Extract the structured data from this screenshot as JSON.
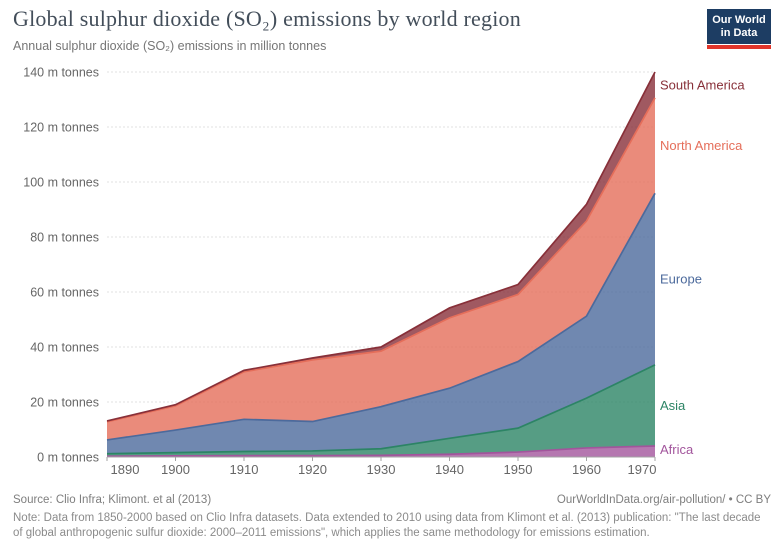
{
  "header": {
    "title": "Global sulphur dioxide (SO₂) emissions by world region",
    "subtitle": "Annual sulphur dioxide (SO₂) emissions in million tonnes",
    "logo": {
      "line1": "Our World",
      "line2": "in Data",
      "bg": "#1d3d63",
      "accent": "#e0352b"
    }
  },
  "footer": {
    "source": "Source: Clio Infra; Klimont. et al (2013)",
    "link": "OurWorldInData.org/air-pollution/",
    "license_suffix": " • CC BY",
    "note": "Note: Data from 1850-2000 based on Clio Infra datasets. Data extended to 2010 using data from Klimont et al. (2013) publication: \"The last decade of global anthropogenic sulfur dioxide: 2000–2011 emissions\", which applies the same methodology for emissions estimation."
  },
  "chart_data": {
    "type": "area",
    "stacked": true,
    "title": "Global sulphur dioxide (SO₂) emissions by world region",
    "ylabel": "m tonnes",
    "xlabel": "",
    "x": [
      1890,
      1900,
      1910,
      1920,
      1930,
      1940,
      1950,
      1960,
      1970
    ],
    "xlim": [
      1890,
      1970
    ],
    "ylim": [
      0,
      140
    ],
    "x_ticks": [
      1890,
      1900,
      1910,
      1920,
      1930,
      1940,
      1950,
      1960,
      1970
    ],
    "y_ticks": [
      0,
      20,
      40,
      60,
      80,
      100,
      120,
      140
    ],
    "y_tick_suffix": " m tonnes",
    "grid": true,
    "legend_position": "right-of-series-end",
    "series": [
      {
        "name": "Africa",
        "color": "#a2559c",
        "values": [
          0.3,
          0.4,
          0.5,
          0.5,
          0.6,
          1.0,
          1.8,
          3.3,
          4.0
        ]
      },
      {
        "name": "Asia",
        "color": "#2c8465",
        "values": [
          0.9,
          1.2,
          1.5,
          1.7,
          2.4,
          5.8,
          8.7,
          18.1,
          29.5
        ]
      },
      {
        "name": "Europe",
        "color": "#4c6a9c",
        "values": [
          5.0,
          8.2,
          11.7,
          10.7,
          15.3,
          18.2,
          24.2,
          29.8,
          62.4
        ]
      },
      {
        "name": "North America",
        "color": "#e56e5a",
        "values": [
          6.6,
          8.8,
          17.3,
          22.4,
          20.2,
          25.6,
          24.4,
          34.6,
          34.7
        ]
      },
      {
        "name": "South America",
        "color": "#883039",
        "values": [
          0.3,
          0.4,
          0.5,
          0.7,
          1.5,
          3.6,
          3.6,
          6.1,
          9.4
        ]
      }
    ],
    "style": {
      "fill_opacity": 0.8,
      "grid_color": "#e2e2e2",
      "axis_color": "#a3a3a3",
      "tick_label_color": "#666666"
    }
  }
}
